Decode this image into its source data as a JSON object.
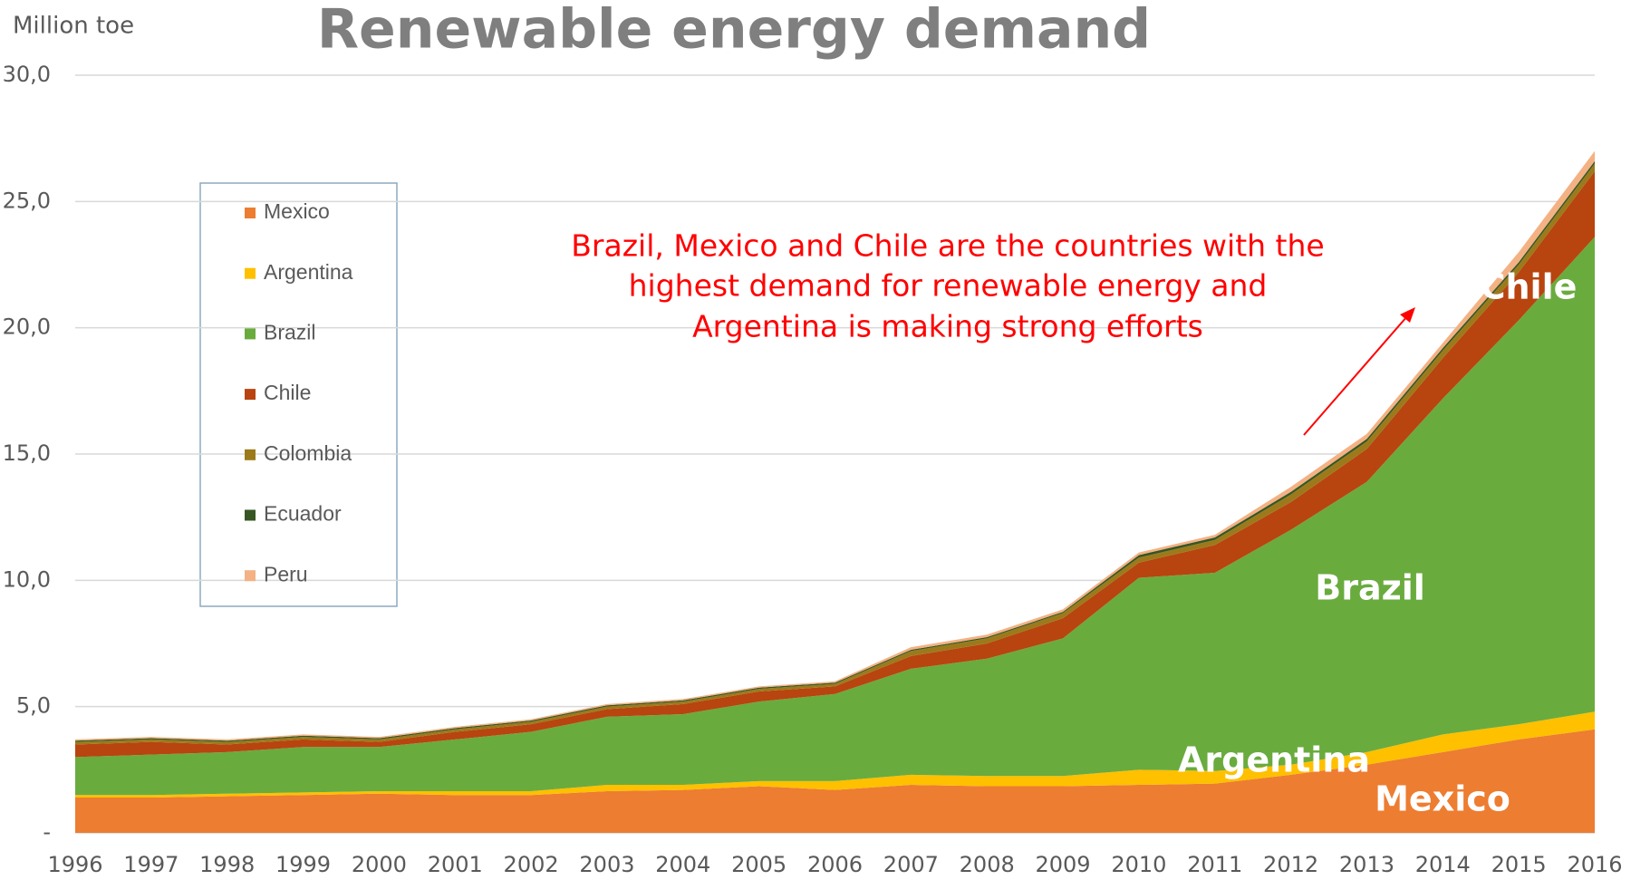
{
  "chart_data": {
    "type": "stacked_area",
    "title": "Renewable energy demand",
    "y_axis_label": "Million toe",
    "annotation": [
      "Brazil, Mexico and Chile are the countries with the",
      "highest demand for renewable energy and",
      "Argentina is making strong efforts"
    ],
    "area_labels": [
      "Chile",
      "Brazil",
      "Argentina",
      "Mexico"
    ],
    "categories": [
      "1996",
      "1997",
      "1998",
      "1999",
      "2000",
      "2001",
      "2002",
      "2003",
      "2004",
      "2005",
      "2006",
      "2007",
      "2008",
      "2009",
      "2010",
      "2011",
      "2012",
      "2013",
      "2014",
      "2015",
      "2016"
    ],
    "series": [
      {
        "name": "Mexico",
        "color": "#ed7d31",
        "values": [
          1.4,
          1.4,
          1.45,
          1.5,
          1.55,
          1.5,
          1.5,
          1.65,
          1.7,
          1.85,
          1.7,
          1.9,
          1.85,
          1.85,
          1.9,
          1.95,
          2.3,
          2.7,
          3.2,
          3.7,
          4.1
        ]
      },
      {
        "name": "Argentina",
        "color": "#ffc000",
        "values": [
          0.1,
          0.1,
          0.1,
          0.1,
          0.1,
          0.15,
          0.15,
          0.25,
          0.2,
          0.2,
          0.35,
          0.4,
          0.4,
          0.4,
          0.6,
          0.5,
          0.4,
          0.5,
          0.7,
          0.6,
          0.7
        ]
      },
      {
        "name": "Brazil",
        "color": "#6aab3e",
        "values": [
          1.5,
          1.6,
          1.65,
          1.8,
          1.75,
          2.05,
          2.35,
          2.7,
          2.8,
          3.15,
          3.45,
          4.2,
          4.65,
          5.45,
          7.6,
          7.85,
          9.3,
          10.7,
          13.3,
          16.0,
          18.8
        ]
      },
      {
        "name": "Chile",
        "color": "#b8440f",
        "values": [
          0.5,
          0.5,
          0.3,
          0.3,
          0.2,
          0.3,
          0.3,
          0.3,
          0.4,
          0.4,
          0.3,
          0.5,
          0.6,
          0.8,
          0.6,
          1.1,
          1.1,
          1.3,
          1.6,
          1.9,
          2.6
        ]
      },
      {
        "name": "Colombia",
        "color": "#9c7a1b",
        "values": [
          0.1,
          0.1,
          0.1,
          0.1,
          0.1,
          0.1,
          0.1,
          0.1,
          0.1,
          0.1,
          0.1,
          0.2,
          0.2,
          0.2,
          0.2,
          0.2,
          0.3,
          0.3,
          0.3,
          0.3,
          0.3
        ]
      },
      {
        "name": "Ecuador",
        "color": "#375623",
        "values": [
          0.05,
          0.05,
          0.05,
          0.05,
          0.05,
          0.05,
          0.05,
          0.05,
          0.05,
          0.05,
          0.05,
          0.05,
          0.05,
          0.05,
          0.1,
          0.1,
          0.1,
          0.1,
          0.1,
          0.1,
          0.1
        ]
      },
      {
        "name": "Peru",
        "color": "#f4b183",
        "values": [
          0.05,
          0.05,
          0.05,
          0.05,
          0.05,
          0.05,
          0.05,
          0.05,
          0.05,
          0.05,
          0.05,
          0.1,
          0.1,
          0.1,
          0.1,
          0.1,
          0.2,
          0.2,
          0.2,
          0.4,
          0.4
        ]
      }
    ],
    "ylim": [
      0,
      30
    ],
    "yticks": [
      {
        "value": 0,
        "label": "-"
      },
      {
        "value": 5,
        "label": "5,0"
      },
      {
        "value": 10,
        "label": "10,0"
      },
      {
        "value": 15,
        "label": "15,0"
      },
      {
        "value": 20,
        "label": "20,0"
      },
      {
        "value": 25,
        "label": "25,0"
      },
      {
        "value": 30,
        "label": "30,0"
      }
    ],
    "grid": true
  }
}
